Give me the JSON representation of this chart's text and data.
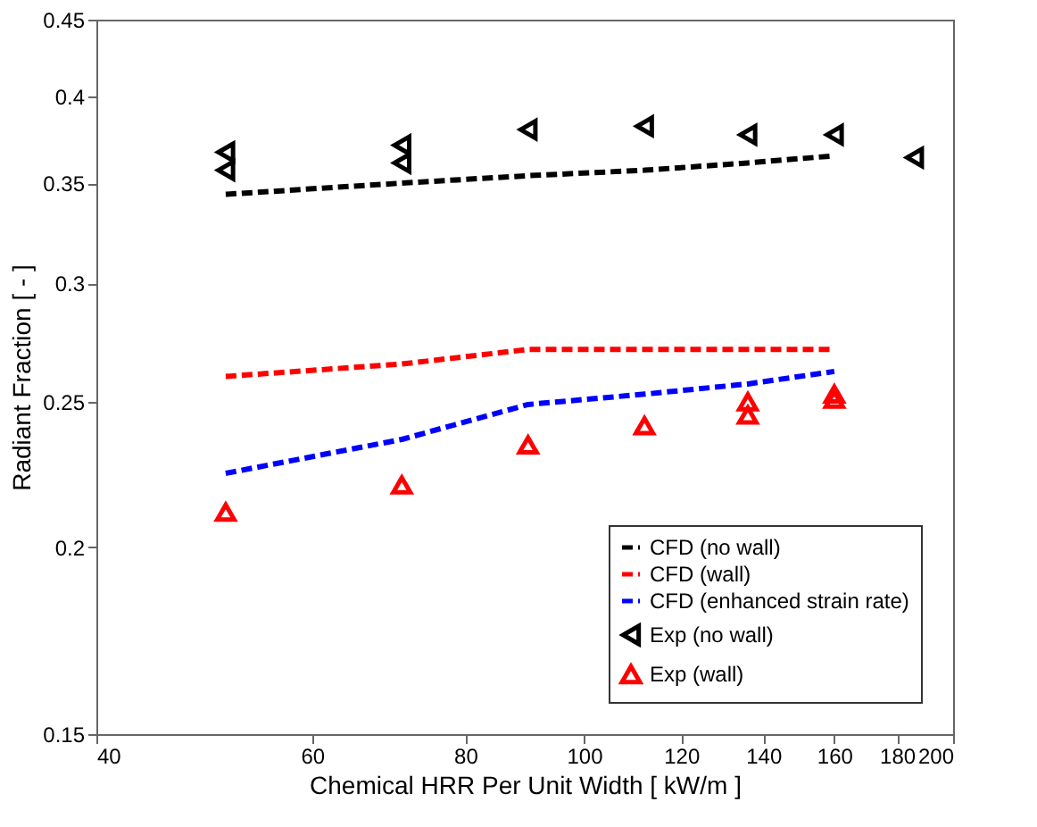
{
  "chart_data": {
    "type": "line",
    "xlabel": "Chemical HRR Per Unit Width [ kW/m ]",
    "ylabel": "Radiant Fraction [ - ]",
    "log": "xy",
    "xlim": [
      40,
      200
    ],
    "xticks": [
      40,
      60,
      80,
      100,
      120,
      140,
      160,
      180,
      200
    ],
    "ylim": [
      0.15,
      0.45
    ],
    "yticks": [
      0.15,
      0.2,
      0.25,
      0.3,
      0.35,
      0.4,
      0.45
    ],
    "grid": false,
    "legend": "bottom right",
    "series": [
      {
        "name": "CFD (no wall)",
        "color": "#000000",
        "line_style": "dashed",
        "marker": "none",
        "x": [
          51,
          71,
          90,
          112,
          136,
          160
        ],
        "values": [
          0.344,
          0.35,
          0.354,
          0.357,
          0.361,
          0.365
        ]
      },
      {
        "name": "CFD (wall)",
        "color": "#ff0000",
        "line_style": "dashed",
        "marker": "none",
        "x": [
          51,
          71,
          90,
          112,
          136,
          160
        ],
        "values": [
          0.26,
          0.265,
          0.271,
          0.271,
          0.271,
          0.271
        ]
      },
      {
        "name": "CFD (enhanced strain rate)",
        "color": "#0000ff",
        "line_style": "dashed",
        "marker": "none",
        "x": [
          51,
          71,
          90,
          112,
          136,
          160
        ],
        "values": [
          0.224,
          0.236,
          0.249,
          0.253,
          0.257,
          0.262
        ]
      },
      {
        "name": "Exp (no wall)",
        "type": "scatter",
        "color": "#000000",
        "marker": "triangle-left",
        "x": [
          51,
          51,
          71,
          71,
          90,
          112,
          136,
          160,
          186
        ],
        "values": [
          0.367,
          0.357,
          0.371,
          0.361,
          0.38,
          0.382,
          0.377,
          0.377,
          0.364
        ]
      },
      {
        "name": "Exp (wall)",
        "type": "scatter",
        "color": "#ff0000",
        "marker": "triangle",
        "x": [
          51,
          71,
          90,
          112,
          136,
          136,
          160,
          160
        ],
        "values": [
          0.211,
          0.22,
          0.234,
          0.241,
          0.25,
          0.245,
          0.253,
          0.251
        ]
      }
    ]
  }
}
